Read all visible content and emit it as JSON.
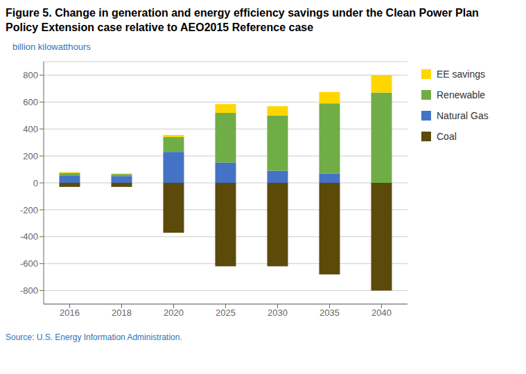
{
  "chart_data": {
    "type": "bar",
    "title": "Figure 5. Change in generation and energy efficiency savings under the Clean Power Plan Policy Extension case relative to AEO2015 Reference case",
    "y_label": "billion kilowatthours",
    "source": "Source: U.S. Energy Information Administration.",
    "categories": [
      "2016",
      "2018",
      "2020",
      "2025",
      "2030",
      "2035",
      "2040"
    ],
    "series": [
      {
        "name": "Coal",
        "color": "#5B4A0A",
        "values": [
          -30,
          -30,
          -370,
          -620,
          -620,
          -680,
          -800
        ]
      },
      {
        "name": "Natural Gas",
        "color": "#4472C4",
        "values": [
          55,
          50,
          230,
          150,
          90,
          70,
          0
        ]
      },
      {
        "name": "Renewable",
        "color": "#70AD47",
        "values": [
          20,
          15,
          110,
          370,
          410,
          520,
          670
        ]
      },
      {
        "name": "EE savings",
        "color": "#FFD700",
        "values": [
          5,
          5,
          15,
          65,
          70,
          85,
          130
        ]
      }
    ],
    "stacked": true,
    "ylim": [
      -900,
      900
    ],
    "yticks": [
      -800,
      -600,
      -400,
      -200,
      0,
      200,
      400,
      600,
      800
    ],
    "grid": true,
    "legend": "right"
  }
}
